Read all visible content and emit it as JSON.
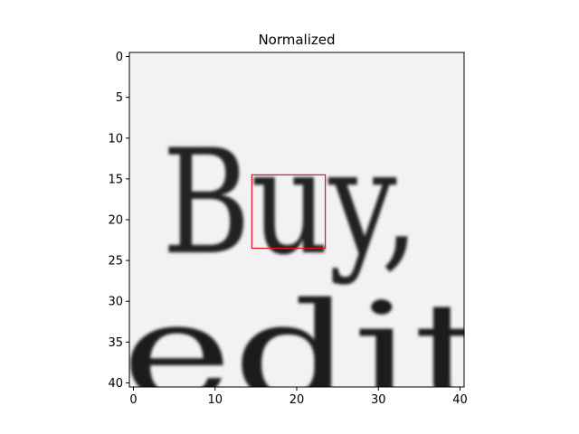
{
  "figure": {
    "title": "Normalized",
    "colormap": "gray",
    "image_size": [
      41,
      41
    ],
    "x_ticks": [
      "0",
      "10",
      "20",
      "30",
      "40"
    ],
    "y_ticks": [
      "0",
      "5",
      "10",
      "15",
      "20",
      "25",
      "30",
      "35",
      "40"
    ],
    "highlight_box": {
      "x_range": [
        15,
        24
      ],
      "y_range": [
        15,
        24
      ],
      "color": "#e8101c"
    },
    "depicted_word_top": "Buy,",
    "depicted_word_bottom": "edit"
  }
}
